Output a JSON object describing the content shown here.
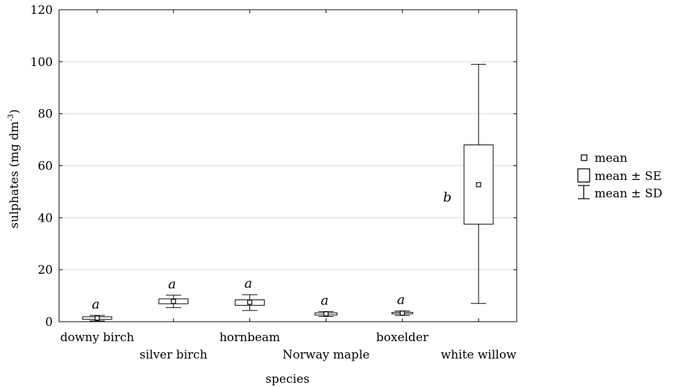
{
  "chart_data": {
    "type": "boxplot",
    "xlabel": "species",
    "ylabel_main": "sulphates (mg dm",
    "ylabel_sup": "-3",
    "ylabel_close": ")",
    "ylim": [
      0,
      120
    ],
    "yticks": [
      0,
      20,
      40,
      60,
      80,
      100,
      120
    ],
    "grid": "horizontal",
    "legend_placement": "right",
    "categories": [
      "downy birch",
      "silver birch",
      "hornbeam",
      "Norway maple",
      "boxelder",
      "white willow"
    ],
    "series": [
      {
        "category": "downy birch",
        "mean": 1.4,
        "se_low": 0.9,
        "se_high": 1.9,
        "sd_low": 0.3,
        "sd_high": 2.4,
        "group": "a"
      },
      {
        "category": "silver birch",
        "mean": 7.8,
        "se_low": 6.9,
        "se_high": 8.8,
        "sd_low": 5.4,
        "sd_high": 10.2,
        "group": "a"
      },
      {
        "category": "hornbeam",
        "mean": 7.5,
        "se_low": 6.3,
        "se_high": 8.4,
        "sd_low": 4.3,
        "sd_high": 10.4,
        "group": "a"
      },
      {
        "category": "Norway maple",
        "mean": 3.0,
        "se_low": 2.6,
        "se_high": 3.4,
        "sd_low": 2.0,
        "sd_high": 3.9,
        "group": "a"
      },
      {
        "category": "boxelder",
        "mean": 3.3,
        "se_low": 3.0,
        "se_high": 3.6,
        "sd_low": 2.4,
        "sd_high": 4.1,
        "group": "a"
      },
      {
        "category": "white willow",
        "mean": 52.7,
        "se_low": 37.5,
        "se_high": 68.0,
        "sd_low": 7.0,
        "sd_high": 99.0,
        "group": "b"
      }
    ],
    "legend": [
      {
        "symbol": "mean-point",
        "label": "mean"
      },
      {
        "symbol": "se-box",
        "label": "mean ± SE"
      },
      {
        "symbol": "sd-whisker",
        "label": "mean ± SD"
      }
    ],
    "colors": {
      "line": "#000000",
      "grid": "#d9d9d9",
      "box_fill": "#ffffff"
    }
  }
}
